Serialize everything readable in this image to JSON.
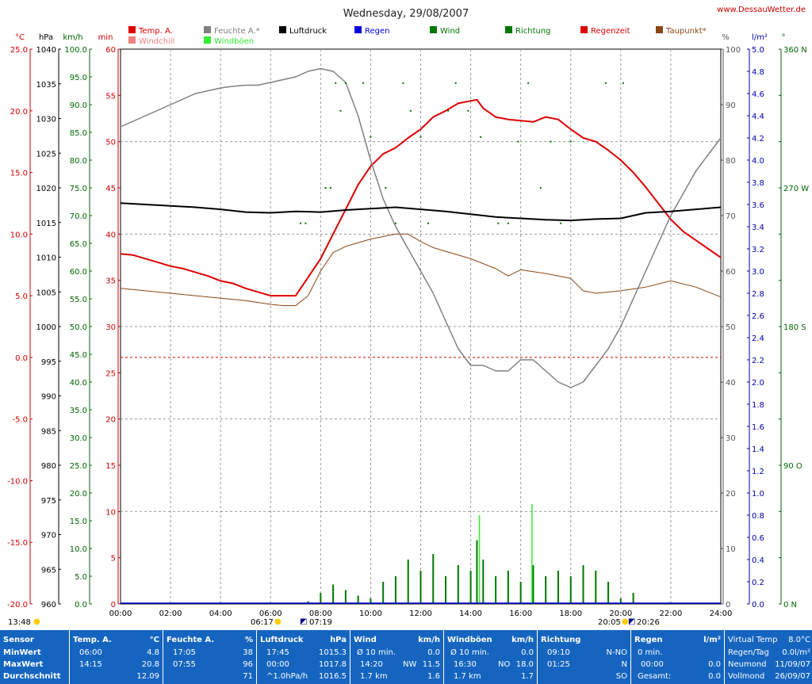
{
  "chart_data": {
    "type": "line",
    "title": "Wednesday, 29/08/2007",
    "site": "www.DessauWetter.de",
    "x_unit": "hours",
    "x_ticks": [
      "00:00",
      "02:00",
      "04:00",
      "06:00",
      "08:00",
      "10:00",
      "12:00",
      "14:00",
      "16:00",
      "18:00",
      "20:00",
      "22:00",
      "24:00"
    ],
    "axes": {
      "temp_c": {
        "label": "°C",
        "min": -20,
        "max": 25,
        "step": 5,
        "color": "#cc0000"
      },
      "pressure_hpa": {
        "label": "hPa",
        "min": 960,
        "max": 1040,
        "step": 5,
        "color": "#000000"
      },
      "wind_kmh": {
        "label": "km/h",
        "min": 0,
        "max": 100,
        "step": 5,
        "color": "#006600"
      },
      "rain_min": {
        "label": "min",
        "min": 0,
        "max": 60,
        "step": 5,
        "color": "#cc0000"
      },
      "humidity_pct": {
        "label": "%",
        "min": 0,
        "max": 100,
        "step": 10,
        "color": "#555555"
      },
      "rain_lm2": {
        "label": "l/m²",
        "min": 0,
        "max": 5,
        "step": 0.2,
        "color": "#0000aa"
      },
      "direction_deg": {
        "label": "°",
        "min": 0,
        "max": 360,
        "step": 30,
        "color": "#006600",
        "tick_labels": {
          "0": "0   N",
          "90": "90  O",
          "180": "180 S",
          "270": "270 W",
          "360": "360 N"
        }
      }
    },
    "legend": [
      {
        "name": "Temp. A.",
        "color": "#e00000"
      },
      {
        "name": "Windchill",
        "color": "#f08080"
      },
      {
        "name": "Feuchte A.*",
        "color": "#808080"
      },
      {
        "name": "Windböen",
        "color": "#33ee33"
      },
      {
        "name": "Luftdruck",
        "color": "#000000"
      },
      {
        "name": "Regen",
        "color": "#0000dd"
      },
      {
        "name": "Wind",
        "color": "#007700"
      },
      {
        "name": "Richtung",
        "color": "#007700"
      },
      {
        "name": "Regenzeit",
        "color": "#e00000"
      },
      {
        "name": "Taupunkt*",
        "color": "#8b4513"
      }
    ],
    "series": [
      {
        "name": "Temp. A.",
        "axis": "temp_c",
        "color": "#dd0000",
        "x": [
          0,
          0.5,
          1,
          1.5,
          2,
          2.5,
          3,
          3.5,
          4,
          4.5,
          5,
          5.5,
          6,
          6.5,
          7,
          7.5,
          8,
          8.5,
          9,
          9.5,
          10,
          10.5,
          11,
          11.5,
          12,
          12.5,
          13,
          13.5,
          14,
          14.25,
          14.5,
          15,
          15.5,
          16,
          16.5,
          17,
          17.5,
          18,
          18.5,
          19,
          19.5,
          20,
          20.5,
          21,
          21.5,
          22,
          22.5,
          23,
          23.5,
          24
        ],
        "y": [
          8.4,
          8.3,
          8.0,
          7.7,
          7.4,
          7.2,
          6.9,
          6.6,
          6.2,
          6.0,
          5.6,
          5.3,
          5.0,
          5.0,
          5.0,
          6.5,
          8.0,
          10.0,
          12.0,
          14.0,
          15.5,
          16.5,
          17.0,
          17.8,
          18.5,
          19.5,
          20.0,
          20.6,
          20.8,
          20.9,
          20.2,
          19.5,
          19.3,
          19.2,
          19.1,
          19.5,
          19.3,
          18.5,
          17.8,
          17.5,
          16.8,
          16.0,
          15.0,
          13.8,
          12.5,
          11.2,
          10.2,
          9.5,
          8.8,
          8.1
        ]
      },
      {
        "name": "Taupunkt*",
        "axis": "temp_c",
        "color": "#8b4513",
        "x": [
          0,
          1,
          2,
          3,
          4,
          5,
          6,
          6.5,
          7,
          7.5,
          8,
          8.5,
          9,
          10,
          11,
          11.5,
          12,
          12.5,
          13,
          14,
          15,
          15.5,
          16,
          17,
          18,
          18.5,
          19,
          20,
          21,
          22,
          23,
          24
        ],
        "y": [
          5.6,
          5.4,
          5.2,
          5.0,
          4.8,
          4.6,
          4.3,
          4.2,
          4.2,
          5.0,
          7.0,
          8.5,
          9.0,
          9.6,
          10.0,
          10.0,
          9.4,
          8.9,
          8.6,
          8.0,
          7.2,
          6.6,
          7.1,
          6.8,
          6.4,
          5.4,
          5.2,
          5.4,
          5.7,
          6.2,
          5.7,
          4.9
        ]
      },
      {
        "name": "Feuchte A.*",
        "axis": "humidity_pct",
        "color": "#808080",
        "x": [
          0,
          0.5,
          1,
          1.5,
          2,
          2.5,
          3,
          3.5,
          4,
          4.5,
          5,
          5.5,
          6,
          6.5,
          7,
          7.5,
          8,
          8.5,
          9,
          9.5,
          10,
          10.5,
          11,
          11.5,
          12,
          12.5,
          13,
          13.5,
          14,
          14.5,
          15,
          15.5,
          16,
          16.5,
          17,
          17.5,
          18,
          18.5,
          19,
          19.5,
          20,
          20.5,
          21,
          21.5,
          22,
          22.5,
          23,
          23.5,
          24
        ],
        "y": [
          86,
          87,
          88,
          89,
          90,
          91,
          92,
          92.5,
          93,
          93.3,
          93.5,
          93.5,
          94,
          94.5,
          95,
          96,
          96.5,
          96,
          94,
          88,
          80,
          73,
          68,
          64,
          60,
          56,
          51,
          46,
          43,
          43,
          42,
          42,
          44,
          44,
          42,
          40,
          39,
          40,
          43,
          46,
          50,
          55,
          60,
          65,
          70,
          74,
          78,
          81,
          84
        ]
      },
      {
        "name": "Luftdruck",
        "axis": "pressure_hpa",
        "color": "#000000",
        "x": [
          0,
          1,
          2,
          3,
          4,
          5,
          6,
          7,
          8,
          9,
          10,
          11,
          12,
          13,
          14,
          15,
          16,
          17,
          18,
          19,
          20,
          21,
          22,
          23,
          24
        ],
        "y": [
          1017.8,
          1017.6,
          1017.4,
          1017.2,
          1016.9,
          1016.5,
          1016.4,
          1016.6,
          1016.5,
          1016.8,
          1017.0,
          1017.2,
          1016.9,
          1016.6,
          1016.2,
          1015.8,
          1015.6,
          1015.4,
          1015.3,
          1015.5,
          1015.6,
          1016.4,
          1016.6,
          1016.9,
          1017.2
        ]
      },
      {
        "name": "Wind",
        "axis": "wind_kmh",
        "color": "#007700",
        "style": "bars",
        "x": [
          7.5,
          8,
          8.5,
          9,
          9.5,
          10,
          10.5,
          11,
          11.5,
          12,
          12.5,
          13,
          13.5,
          14,
          14.25,
          14.5,
          15,
          15.5,
          16,
          16.5,
          17,
          17.5,
          18,
          18.5,
          19,
          19.5,
          20,
          20.5
        ],
        "y": [
          0.5,
          2.0,
          3.5,
          2.5,
          1.5,
          1.0,
          4.0,
          5.0,
          8.0,
          6.0,
          9.0,
          5.0,
          7.0,
          6.0,
          11.5,
          8.0,
          5.0,
          6.0,
          4.0,
          7.0,
          5.0,
          6.0,
          5.0,
          7.0,
          6.0,
          4.0,
          1.0,
          2.0
        ]
      },
      {
        "name": "Windböen",
        "axis": "wind_kmh",
        "color": "#33ee33",
        "x": [
          14.35,
          16.45
        ],
        "y": [
          16.0,
          18.0
        ]
      },
      {
        "name": "Richtung",
        "axis": "direction_deg",
        "color": "#007700",
        "style": "dots",
        "x": [
          7.2,
          7.4,
          8.2,
          8.4,
          8.6,
          8.8,
          9.0,
          9.7,
          10.0,
          10.6,
          11.0,
          11.3,
          11.6,
          12.0,
          12.3,
          13.1,
          13.4,
          13.9,
          14.4,
          15.1,
          15.5,
          15.9,
          16.3,
          16.8,
          17.2,
          17.6,
          18.0,
          19.4,
          20.1
        ],
        "y": [
          247,
          247,
          270,
          270,
          338,
          320,
          338,
          338,
          303,
          270,
          247,
          338,
          320,
          303,
          247,
          320,
          338,
          320,
          303,
          247,
          247,
          300,
          338,
          270,
          300,
          247,
          300,
          338,
          338
        ]
      }
    ]
  },
  "sun": {
    "sunrise": "06:17",
    "sunrise_marker": "07:19",
    "sunset": "20:05",
    "sunset_marker": "20:26",
    "left_time": "13:48"
  },
  "stats": {
    "sensor": {
      "h": "Sensor",
      "r1": "MinWert",
      "r2": "MaxWert",
      "r3": "Durchschnitt"
    },
    "temp": {
      "h": "Temp. A.",
      "u": "°C",
      "r1t": "06:00",
      "r1v": "4.8",
      "r2t": "14:15",
      "r2v": "20.8",
      "r3t": "",
      "r3v": "12.09"
    },
    "feuchte": {
      "h": "Feuchte A.",
      "u": "%",
      "r1t": "17:05",
      "r1v": "38",
      "r2t": "07:55",
      "r2v": "96",
      "r3t": "",
      "r3v": "71"
    },
    "luftdruck": {
      "h": "Luftdruck",
      "u": "hPa",
      "r1t": "17:45",
      "r1v": "1015.3",
      "r2t": "00:00",
      "r2v": "1017.8",
      "r3t": "^1.0hPa/h",
      "r3v": "1016.5"
    },
    "wind": {
      "h": "Wind",
      "u": "km/h",
      "r1t": "Ø 10 min.",
      "r1v": "0.0",
      "r2t": "14:20",
      "r2m": "NW",
      "r2v": "11.5",
      "r3t": "1.7 km",
      "r3v": "1.6"
    },
    "windboen": {
      "h": "Windböen",
      "u": "km/h",
      "r1t": "Ø 10 min.",
      "r1v": "0.0",
      "r2t": "16:30",
      "r2m": "NO",
      "r2v": "18.0",
      "r3t": "1.7 km",
      "r3v": "1.7"
    },
    "richtung": {
      "h": "Richtung",
      "u": "",
      "r1t": "09:10",
      "r1v": "N-NO",
      "r2t": "01:25",
      "r2v": "N",
      "r3t": "",
      "r3v": "SO"
    },
    "regen": {
      "h": "Regen",
      "u": "l/m²",
      "r1t": "0 min.",
      "r1v": "",
      "r2t": "00:00",
      "r2v": "0.0",
      "r3t": "Gesamt:",
      "r3v": "0.0"
    },
    "extra": {
      "r0t": "Virtual Temp",
      "r0v": "8.0°C",
      "r1t": "Regen/Tag",
      "r1v": "0.0l/m²",
      "r2t": "Neumond",
      "r2v": "11/09/07",
      "r3t": "Vollmond",
      "r3v": "26/09/07"
    }
  }
}
